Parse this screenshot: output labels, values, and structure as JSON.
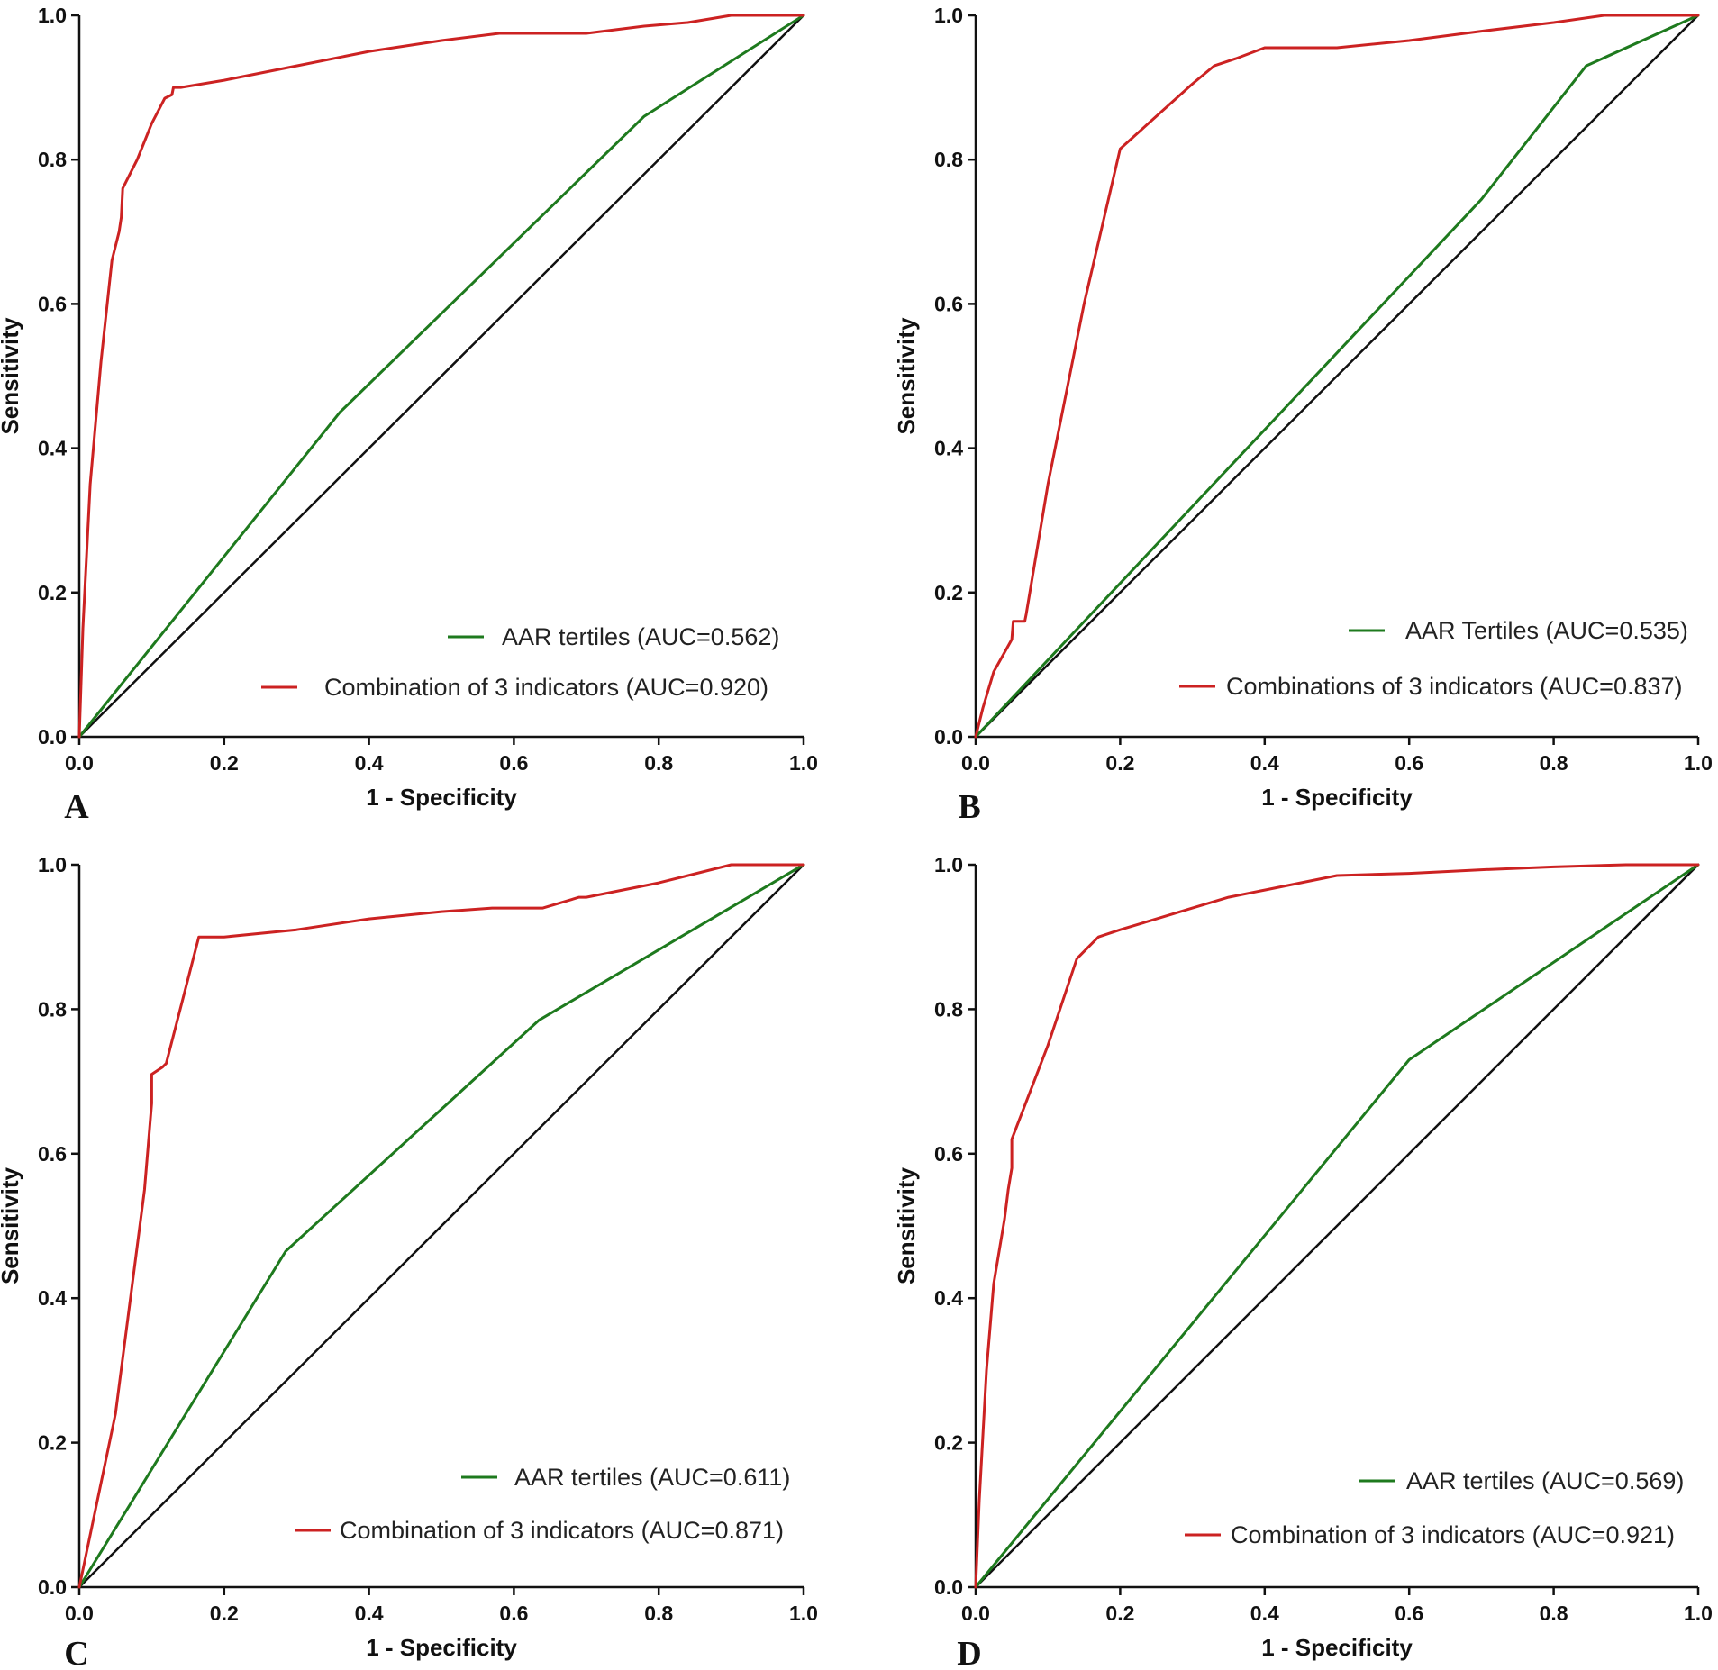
{
  "chart_data": [
    {
      "type": "line",
      "panel_label": "A",
      "xlabel": "1 - Specificity",
      "ylabel": "Sensitivity",
      "xlim": [
        0,
        1
      ],
      "ylim": [
        0,
        1
      ],
      "x_ticks": [
        "0.0",
        "0.2",
        "0.4",
        "0.6",
        "0.8",
        "1.0"
      ],
      "y_ticks": [
        "0.0",
        "0.2",
        "0.4",
        "0.6",
        "0.8",
        "1.0"
      ],
      "legend_position": "bottom-right",
      "reference_line": {
        "x": [
          0,
          1
        ],
        "y": [
          0,
          1
        ],
        "color": "#111111"
      },
      "series": [
        {
          "name": "AAR tertiles (AUC=0.562)",
          "color": "#1e7a1e",
          "x": [
            0,
            0.36,
            0.78,
            1.0
          ],
          "y": [
            0,
            0.45,
            0.86,
            1.0
          ]
        },
        {
          "name": "Combination of 3 indicators (AUC=0.920)",
          "color": "#cc2222",
          "x": [
            0,
            0.005,
            0.015,
            0.03,
            0.045,
            0.055,
            0.058,
            0.06,
            0.08,
            0.1,
            0.118,
            0.128,
            0.13,
            0.14,
            0.2,
            0.3,
            0.4,
            0.5,
            0.58,
            0.7,
            0.78,
            0.84,
            0.9,
            1.0
          ],
          "y": [
            0,
            0.15,
            0.35,
            0.52,
            0.66,
            0.7,
            0.72,
            0.76,
            0.8,
            0.85,
            0.885,
            0.89,
            0.9,
            0.9,
            0.91,
            0.93,
            0.95,
            0.965,
            0.975,
            0.975,
            0.985,
            0.99,
            1.0,
            1.0
          ]
        }
      ]
    },
    {
      "type": "line",
      "panel_label": "B",
      "xlabel": "1 - Specificity",
      "ylabel": "Sensitivity",
      "xlim": [
        0,
        1
      ],
      "ylim": [
        0,
        1
      ],
      "x_ticks": [
        "0.0",
        "0.2",
        "0.4",
        "0.6",
        "0.8",
        "1.0"
      ],
      "y_ticks": [
        "0.0",
        "0.2",
        "0.4",
        "0.6",
        "0.8",
        "1.0"
      ],
      "legend_position": "bottom-right",
      "reference_line": {
        "x": [
          0,
          1
        ],
        "y": [
          0,
          1
        ],
        "color": "#111111"
      },
      "series": [
        {
          "name": "AAR Tertiles (AUC=0.535)",
          "color": "#1e7a1e",
          "x": [
            0,
            0.7,
            0.845,
            1.0
          ],
          "y": [
            0,
            0.745,
            0.93,
            1.0
          ]
        },
        {
          "name": "Combinations of 3 indicators (AUC=0.837)",
          "color": "#cc2222",
          "x": [
            0,
            0.01,
            0.025,
            0.05,
            0.052,
            0.068,
            0.07,
            0.1,
            0.15,
            0.2,
            0.25,
            0.3,
            0.33,
            0.36,
            0.4,
            0.5,
            0.6,
            0.7,
            0.8,
            0.87,
            1.0
          ],
          "y": [
            0,
            0.04,
            0.09,
            0.135,
            0.16,
            0.16,
            0.17,
            0.35,
            0.6,
            0.815,
            0.86,
            0.905,
            0.93,
            0.94,
            0.955,
            0.955,
            0.965,
            0.978,
            0.99,
            1.0,
            1.0
          ]
        }
      ]
    },
    {
      "type": "line",
      "panel_label": "C",
      "xlabel": "1 - Specificity",
      "ylabel": "Sensitivity",
      "xlim": [
        0,
        1
      ],
      "ylim": [
        0,
        1
      ],
      "x_ticks": [
        "0.0",
        "0.2",
        "0.4",
        "0.6",
        "0.8",
        "1.0"
      ],
      "y_ticks": [
        "0.0",
        "0.2",
        "0.4",
        "0.6",
        "0.8",
        "1.0"
      ],
      "legend_position": "bottom-right",
      "reference_line": {
        "x": [
          0,
          1
        ],
        "y": [
          0,
          1
        ],
        "color": "#111111"
      },
      "series": [
        {
          "name": "AAR tertiles (AUC=0.611)",
          "color": "#1e7a1e",
          "x": [
            0,
            0.285,
            0.635,
            1.0
          ],
          "y": [
            0,
            0.465,
            0.785,
            1.0
          ]
        },
        {
          "name": "Combination of 3 indicators (AUC=0.871)",
          "color": "#cc2222",
          "x": [
            0,
            0.05,
            0.09,
            0.1,
            0.1,
            0.115,
            0.12,
            0.165,
            0.2,
            0.3,
            0.4,
            0.5,
            0.57,
            0.64,
            0.69,
            0.7,
            0.8,
            0.9,
            1.0
          ],
          "y": [
            0,
            0.24,
            0.55,
            0.67,
            0.71,
            0.72,
            0.725,
            0.9,
            0.9,
            0.91,
            0.925,
            0.935,
            0.94,
            0.94,
            0.955,
            0.955,
            0.975,
            1.0,
            1.0
          ]
        }
      ]
    },
    {
      "type": "line",
      "panel_label": "D",
      "xlabel": "1 - Specificity",
      "ylabel": "Sensitivity",
      "xlim": [
        0,
        1
      ],
      "ylim": [
        0,
        1
      ],
      "x_ticks": [
        "0.0",
        "0.2",
        "0.4",
        "0.6",
        "0.8",
        "1.0"
      ],
      "y_ticks": [
        "0.0",
        "0.2",
        "0.4",
        "0.6",
        "0.8",
        "1.0"
      ],
      "legend_position": "bottom-right",
      "reference_line": {
        "x": [
          0,
          1
        ],
        "y": [
          0,
          1
        ],
        "color": "#111111"
      },
      "series": [
        {
          "name": "AAR tertiles (AUC=0.569)",
          "color": "#1e7a1e",
          "x": [
            0,
            0.6,
            1.0
          ],
          "y": [
            0,
            0.73,
            1.0
          ]
        },
        {
          "name": "Combination of 3 indicators (AUC=0.921)",
          "color": "#cc2222",
          "x": [
            0,
            0.005,
            0.015,
            0.025,
            0.04,
            0.045,
            0.05,
            0.05,
            0.1,
            0.14,
            0.16,
            0.165,
            0.17,
            0.2,
            0.3,
            0.35,
            0.4,
            0.5,
            0.6,
            0.7,
            0.8,
            0.9,
            1.0
          ],
          "y": [
            0,
            0.12,
            0.3,
            0.42,
            0.51,
            0.55,
            0.58,
            0.62,
            0.75,
            0.87,
            0.89,
            0.895,
            0.9,
            0.91,
            0.94,
            0.955,
            0.965,
            0.985,
            0.988,
            0.993,
            0.997,
            1.0,
            1.0
          ]
        }
      ]
    }
  ]
}
